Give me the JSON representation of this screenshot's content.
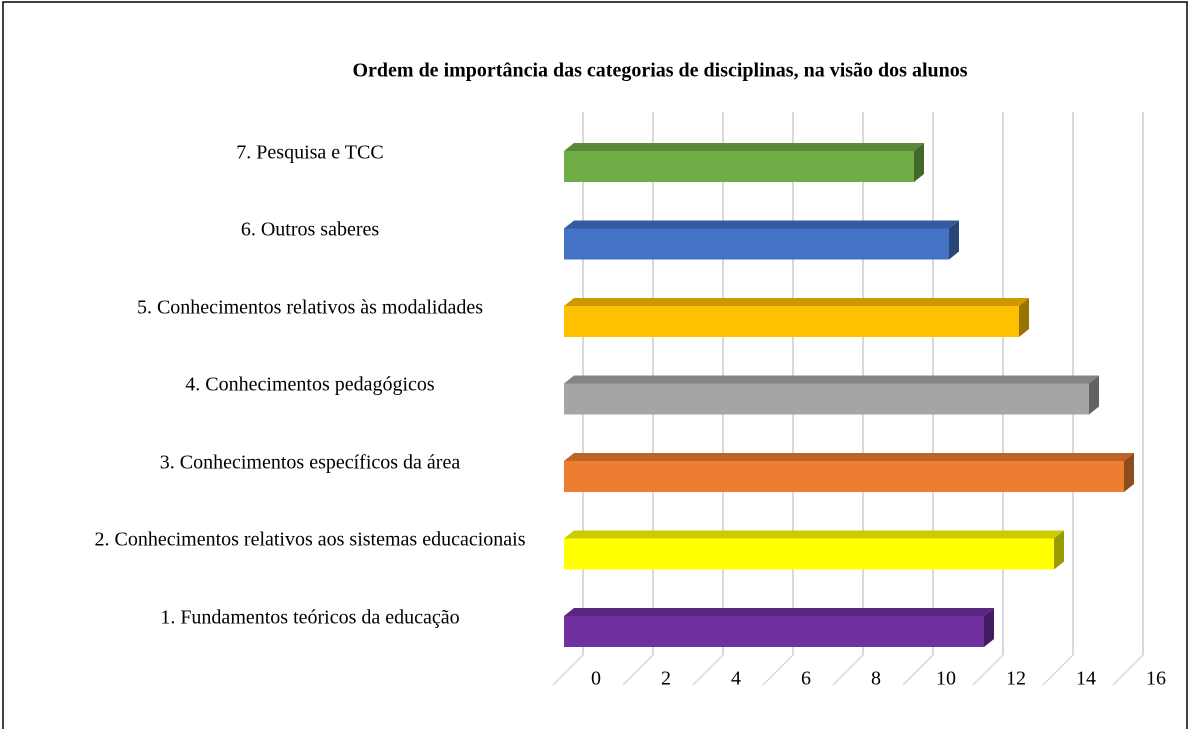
{
  "chart_data": {
    "type": "bar",
    "orientation": "horizontal",
    "title": "Ordem de importância das categorias de disciplinas, na visão dos alunos",
    "categories": [
      "1. Fundamentos teóricos da educação",
      "2. Conhecimentos relativos aos sistemas educacionais",
      "3. Conhecimentos específicos da área",
      "4. Conhecimentos pedagógicos",
      "5. Conhecimentos relativos às modalidades",
      "6. Outros saberes",
      "7. Pesquisa e TCC"
    ],
    "values": [
      12,
      14,
      16,
      15,
      13,
      11,
      10
    ],
    "colors": [
      "#7030a0",
      "#ffff00",
      "#ed7d31",
      "#a5a5a5",
      "#ffc000",
      "#4472c4",
      "#70ad47"
    ],
    "xlim": [
      0,
      16
    ],
    "xticks": [
      0,
      2,
      4,
      6,
      8,
      10,
      12,
      14,
      16
    ],
    "grid": true
  }
}
